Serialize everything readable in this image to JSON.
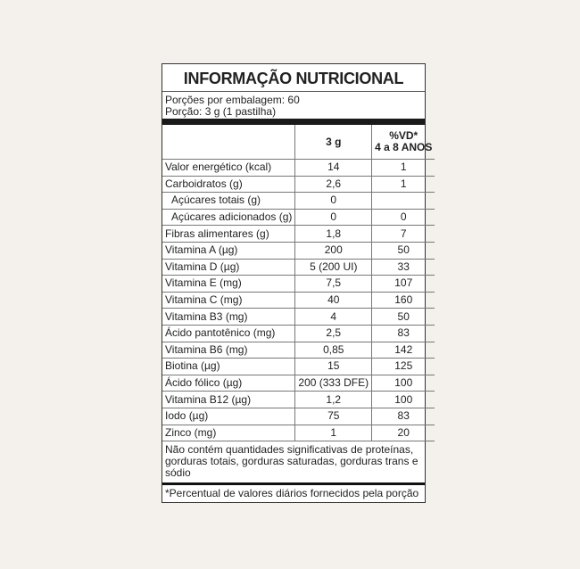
{
  "title": "INFORMAÇÃO NUTRICIONAL",
  "servings_per_package": "Porções por embalagem: 60",
  "serving_size": "Porção: 3 g (1 pastilha)",
  "header": {
    "col1": "",
    "col2": "3 g",
    "col3_line1": "%VD*",
    "col3_line2": "4 a 8 ANOS"
  },
  "rows": [
    {
      "name": "Valor energético (kcal)",
      "amount": "14",
      "dv": "1"
    },
    {
      "name": "Carboidratos (g)",
      "amount": "2,6",
      "dv": "1"
    },
    {
      "name": "Açúcares totais (g)",
      "amount": "0",
      "dv": "",
      "indent": true
    },
    {
      "name": "Açúcares adicionados (g)",
      "amount": "0",
      "dv": "0",
      "indent": true
    },
    {
      "name": "Fibras alimentares (g)",
      "amount": "1,8",
      "dv": "7"
    },
    {
      "name": "Vitamina A (µg)",
      "amount": "200",
      "dv": "50"
    },
    {
      "name": "Vitamina D (µg)",
      "amount": "5 (200 UI)",
      "dv": "33"
    },
    {
      "name": "Vitamina E (mg)",
      "amount": "7,5",
      "dv": "107"
    },
    {
      "name": "Vitamina C (mg)",
      "amount": "40",
      "dv": "160"
    },
    {
      "name": "Vitamina B3 (mg)",
      "amount": "4",
      "dv": "50"
    },
    {
      "name": "Ácido pantotênico (mg)",
      "amount": "2,5",
      "dv": "83"
    },
    {
      "name": "Vitamina B6 (mg)",
      "amount": "0,85",
      "dv": "142"
    },
    {
      "name": "Biotina (µg)",
      "amount": "15",
      "dv": "125"
    },
    {
      "name": "Ácido fólico (µg)",
      "amount": "200 (333 DFE)",
      "dv": "100"
    },
    {
      "name": "Vitamina B12 (µg)",
      "amount": "1,2",
      "dv": "100"
    },
    {
      "name": "Iodo (µg)",
      "amount": "75",
      "dv": "83"
    },
    {
      "name": "Zinco (mg)",
      "amount": "1",
      "dv": "20"
    }
  ],
  "note": "Não contém quantidades significativas de proteínas, gorduras totais, gorduras saturadas, gorduras trans e sódio",
  "footnote": "*Percentual de valores diários fornecidos pela porção"
}
